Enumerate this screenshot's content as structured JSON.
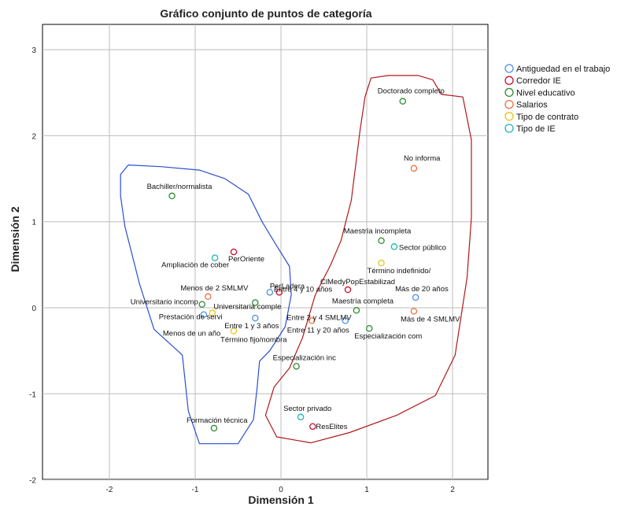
{
  "chart_data": {
    "type": "scatter",
    "title": "Gráfico conjunto de puntos de categoría",
    "xlabel": "Dimensión 1",
    "ylabel": "Dimensión 2",
    "xlim": [
      -2.8,
      2.75
    ],
    "ylim": [
      -2.0,
      3.3
    ],
    "xticks": [
      -2,
      -1,
      0,
      1,
      2
    ],
    "yticks": [
      -2,
      -1,
      0,
      1,
      2,
      3
    ],
    "grid": true,
    "legend_position": "top-right",
    "series": [
      {
        "name": "Antiguedad en el trabajo",
        "color": "#4a90e2",
        "points": [
          {
            "label": "Menos de un año",
            "x": -0.9,
            "y": -0.08
          },
          {
            "label": "Entre 1 y 3 años",
            "x": -0.3,
            "y": -0.12
          },
          {
            "label": "Entre 4 y 10 años",
            "x": -0.13,
            "y": 0.18
          },
          {
            "label": "Entre 11 y 20 años",
            "x": 0.75,
            "y": -0.15
          },
          {
            "label": "Más de 20 años",
            "x": 1.57,
            "y": 0.12
          }
        ]
      },
      {
        "name": "Corredor IE",
        "color": "#c8102e",
        "points": [
          {
            "label": "PerOriente",
            "x": -0.55,
            "y": 0.65
          },
          {
            "label": "PerLadera",
            "x": -0.02,
            "y": 0.18
          },
          {
            "label": "ClMedyPopEstabilizad",
            "x": 0.78,
            "y": 0.21
          },
          {
            "label": "ResElites",
            "x": 0.37,
            "y": -1.38
          }
        ]
      },
      {
        "name": "Nivel educativo",
        "color": "#2e8b2e",
        "points": [
          {
            "label": "Bachiller/normalista",
            "x": -1.27,
            "y": 1.3
          },
          {
            "label": "Universitario incomp",
            "x": -0.92,
            "y": 0.04
          },
          {
            "label": "Universitaria comple",
            "x": -0.3,
            "y": 0.06
          },
          {
            "label": "Maestría incompleta",
            "x": 1.17,
            "y": 0.78
          },
          {
            "label": "Maestría completa",
            "x": 0.88,
            "y": -0.03
          },
          {
            "label": "Especialización com",
            "x": 1.03,
            "y": -0.24
          },
          {
            "label": "Especialización inc",
            "x": 0.18,
            "y": -0.68
          },
          {
            "label": "Doctorado completo",
            "x": 1.42,
            "y": 2.4
          },
          {
            "label": "Formación técnica",
            "x": -0.78,
            "y": -1.4
          }
        ]
      },
      {
        "name": "Salarios",
        "color": "#f07040",
        "points": [
          {
            "label": "Menos de 2 SMLMV",
            "x": -0.85,
            "y": 0.13
          },
          {
            "label": "Entre 2 y 4 SMLMV",
            "x": 0.36,
            "y": -0.15
          },
          {
            "label": "Más de 4 SMLMV",
            "x": 1.55,
            "y": -0.04
          },
          {
            "label": "No informa",
            "x": 1.55,
            "y": 1.62
          }
        ]
      },
      {
        "name": "Tipo de contrato",
        "color": "#e6c619",
        "points": [
          {
            "label": "Prestación de servi",
            "x": -0.8,
            "y": -0.06
          },
          {
            "label": "Término fijo/nombra",
            "x": -0.55,
            "y": -0.27
          },
          {
            "label": "Término indefinido/",
            "x": 1.17,
            "y": 0.52
          }
        ]
      },
      {
        "name": "Tipo de IE",
        "color": "#1fb5b5",
        "points": [
          {
            "label": "Ampliación de cober",
            "x": -0.77,
            "y": 0.58
          },
          {
            "label": "Sector público",
            "x": 1.32,
            "y": 0.71
          },
          {
            "label": "Sector privado",
            "x": 0.23,
            "y": -1.27
          }
        ]
      }
    ],
    "hulls": [
      {
        "color": "#2a4fd0"
      },
      {
        "color": "#b01818"
      }
    ]
  }
}
